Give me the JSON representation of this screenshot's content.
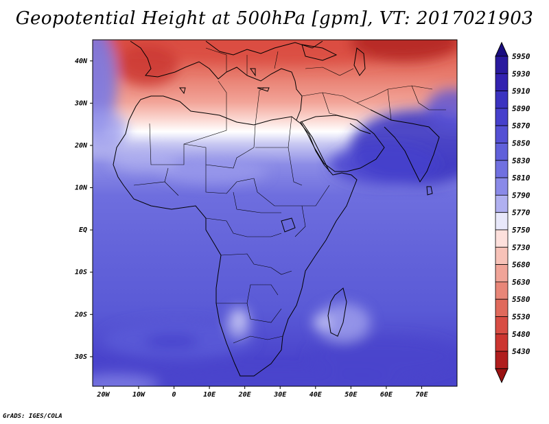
{
  "title": "Geopotential Height at 500hPa [gpm], VT: 2017021903",
  "footer": "GrADS: IGES/COLA",
  "map": {
    "field": "Geopotential Height",
    "level": "500hPa",
    "units": "gpm",
    "lon_range": [
      -23,
      80
    ],
    "lat_range": [
      -37,
      45
    ],
    "lon_ticks": [
      "20W",
      "10W",
      "0",
      "10E",
      "20E",
      "30E",
      "40E",
      "50E",
      "60E",
      "70E"
    ],
    "lat_ticks": [
      "40N",
      "30N",
      "20N",
      "10N",
      "EQ",
      "10S",
      "20S",
      "30S"
    ]
  },
  "colorbar": {
    "levels": [
      "5950",
      "5930",
      "5910",
      "5890",
      "5870",
      "5850",
      "5830",
      "5810",
      "5790",
      "5770",
      "5750",
      "5730",
      "5680",
      "5630",
      "5580",
      "5530",
      "5480",
      "5430"
    ],
    "colors": [
      "#2a1a9e",
      "#3322b0",
      "#3b33c0",
      "#4640cc",
      "#5450d4",
      "#6060da",
      "#7070e0",
      "#8a8ae8",
      "#b0b0f0",
      "#e8e8fa",
      "#fde0dc",
      "#f7c2b8",
      "#f0a498",
      "#e88678",
      "#e06a5c",
      "#d84d44",
      "#cc3530",
      "#b01e1e"
    ],
    "max_color": "#1a0d80",
    "min_color": "#9a1212"
  }
}
